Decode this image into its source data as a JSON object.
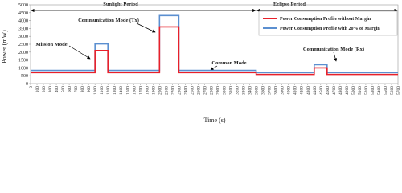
{
  "chart_data": {
    "type": "line",
    "x_label": "Time (s)",
    "y_label": "Power (mW)",
    "x": [
      0,
      1000,
      1000,
      1200,
      1200,
      2000,
      2000,
      2300,
      2300,
      3500,
      3500,
      4400,
      4400,
      4600,
      4600,
      5700
    ],
    "series": [
      {
        "name": "Power Consumption Profile without Margin",
        "color": "#e8202a",
        "values": [
          700,
          700,
          2100,
          2100,
          700,
          700,
          3600,
          3600,
          700,
          700,
          580,
          580,
          1000,
          1000,
          580,
          580
        ]
      },
      {
        "name": "Power Consumption Profile with 20% of Margin",
        "color": "#5b8fd0",
        "values": [
          840,
          840,
          2520,
          2520,
          840,
          840,
          4320,
          4320,
          840,
          840,
          700,
          700,
          1200,
          1200,
          700,
          700
        ]
      }
    ],
    "xlim": [
      0,
      5700
    ],
    "ylim": [
      0,
      5000
    ],
    "xticks": [
      0,
      100,
      200,
      300,
      400,
      500,
      600,
      700,
      800,
      900,
      1000,
      1100,
      1200,
      1300,
      1400,
      1500,
      1600,
      1700,
      1800,
      1900,
      2000,
      2100,
      2200,
      2300,
      2400,
      2500,
      2600,
      2700,
      2800,
      2900,
      3000,
      3100,
      3200,
      3300,
      3400,
      3500,
      3600,
      3700,
      3800,
      3900,
      4000,
      4100,
      4200,
      4300,
      4400,
      4500,
      4600,
      4700,
      4800,
      4900,
      5000,
      5100,
      5200,
      5300,
      5400,
      5500,
      5600,
      5700
    ],
    "yticks": [
      0,
      500,
      1000,
      1500,
      2000,
      2500,
      3000,
      3500,
      4000,
      4500,
      5000
    ],
    "grid": false,
    "legend": "upper right",
    "divider_x": 3500,
    "annotations": [
      "Sunlight Period",
      "Eclipse Period",
      "Mission Mode",
      "Communication Mode (Tx)",
      "Common Mode",
      "Communication Mode (Rx)"
    ]
  }
}
